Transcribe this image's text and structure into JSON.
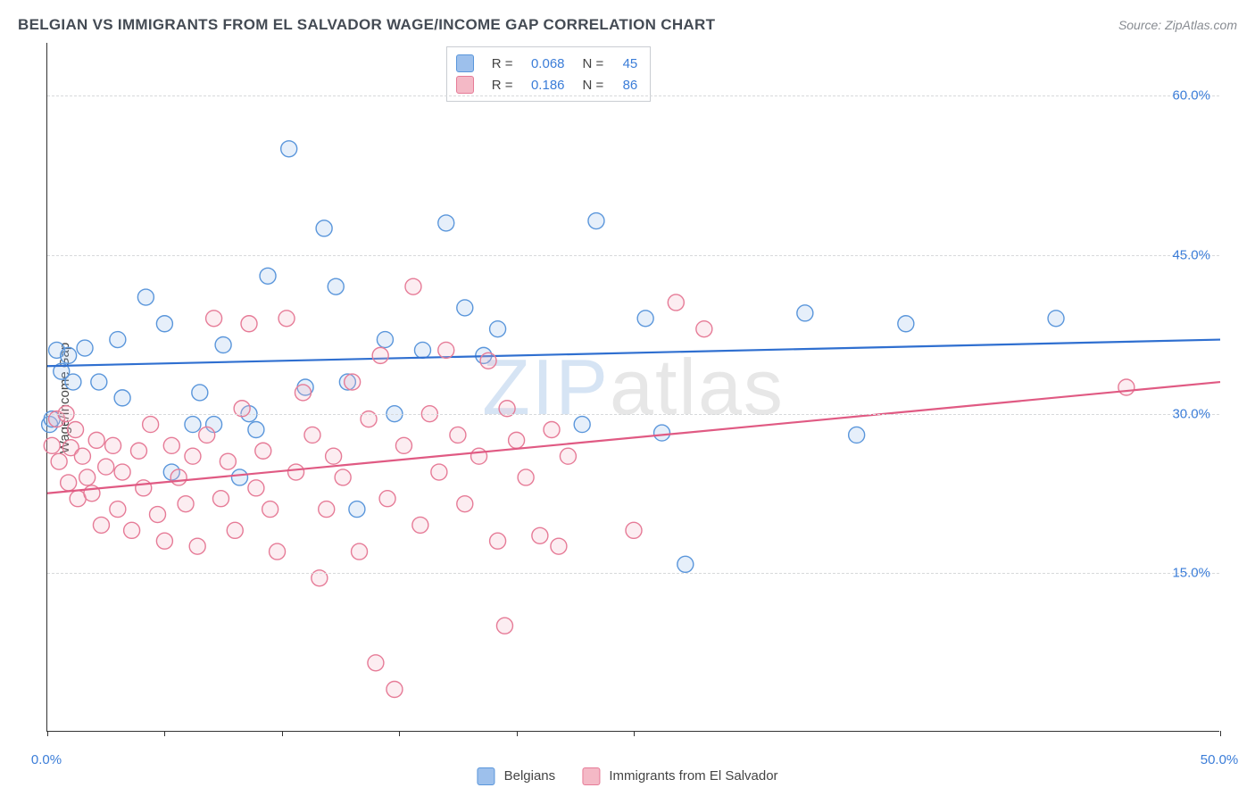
{
  "header": {
    "title": "BELGIAN VS IMMIGRANTS FROM EL SALVADOR WAGE/INCOME GAP CORRELATION CHART",
    "source": "Source: ZipAtlas.com"
  },
  "watermark": {
    "part1": "ZIP",
    "part2": "atlas"
  },
  "chart": {
    "type": "scatter",
    "ylabel": "Wage/Income Gap",
    "background_color": "#ffffff",
    "grid_color": "#d7d9db",
    "axis_color": "#333333",
    "label_color": "#3b7dd8",
    "xlim": [
      0,
      50
    ],
    "ylim": [
      0,
      65
    ],
    "xtick_positions": [
      0,
      5,
      10,
      15,
      20,
      25,
      50
    ],
    "xtick_labels": {
      "0": "0.0%",
      "50": "50.0%"
    },
    "ytick_positions": [
      15,
      30,
      45,
      60
    ],
    "ytick_labels": {
      "15": "15.0%",
      "30": "30.0%",
      "45": "45.0%",
      "60": "60.0%"
    },
    "marker_radius": 9,
    "marker_fill_opacity": 0.25,
    "marker_stroke_width": 1.4,
    "line_width": 2.2,
    "series": [
      {
        "id": "belgians",
        "label": "Belgians",
        "color_fill": "#9dc0ec",
        "color_stroke": "#5a96db",
        "R": "0.068",
        "N": "45",
        "trend": {
          "x1": 0,
          "y1": 34.5,
          "x2": 50,
          "y2": 37.0,
          "color": "#2f6fd0"
        },
        "points": [
          [
            0.1,
            29.0
          ],
          [
            0.2,
            29.5
          ],
          [
            0.4,
            36.0
          ],
          [
            0.6,
            34.0
          ],
          [
            0.9,
            35.5
          ],
          [
            1.1,
            33.0
          ],
          [
            1.6,
            36.2
          ],
          [
            2.2,
            33.0
          ],
          [
            3.0,
            37.0
          ],
          [
            3.2,
            31.5
          ],
          [
            4.2,
            41.0
          ],
          [
            5.0,
            38.5
          ],
          [
            5.3,
            24.5
          ],
          [
            6.2,
            29.0
          ],
          [
            6.5,
            32.0
          ],
          [
            7.1,
            29.0
          ],
          [
            7.5,
            36.5
          ],
          [
            8.2,
            24.0
          ],
          [
            8.6,
            30.0
          ],
          [
            8.9,
            28.5
          ],
          [
            9.4,
            43.0
          ],
          [
            10.3,
            55.0
          ],
          [
            11.0,
            32.5
          ],
          [
            11.8,
            47.5
          ],
          [
            12.3,
            42.0
          ],
          [
            12.8,
            33.0
          ],
          [
            13.2,
            21.0
          ],
          [
            14.4,
            37.0
          ],
          [
            14.8,
            30.0
          ],
          [
            16.0,
            36.0
          ],
          [
            17.0,
            48.0
          ],
          [
            17.8,
            40.0
          ],
          [
            18.6,
            35.5
          ],
          [
            19.2,
            38.0
          ],
          [
            22.8,
            29.0
          ],
          [
            23.4,
            48.2
          ],
          [
            25.5,
            39.0
          ],
          [
            26.2,
            28.2
          ],
          [
            27.2,
            15.8
          ],
          [
            32.3,
            39.5
          ],
          [
            34.5,
            28.0
          ],
          [
            36.6,
            38.5
          ],
          [
            43.0,
            39.0
          ]
        ]
      },
      {
        "id": "el_salvador",
        "label": "Immigrants from El Salvador",
        "color_fill": "#f4b9c6",
        "color_stroke": "#e67b97",
        "R": "0.186",
        "N": "86",
        "trend": {
          "x1": 0,
          "y1": 22.5,
          "x2": 50,
          "y2": 33.0,
          "color": "#e05a83"
        },
        "points": [
          [
            0.2,
            27.0
          ],
          [
            0.4,
            29.5
          ],
          [
            0.5,
            25.5
          ],
          [
            0.8,
            30.0
          ],
          [
            0.9,
            23.5
          ],
          [
            1.0,
            26.8
          ],
          [
            1.2,
            28.5
          ],
          [
            1.3,
            22.0
          ],
          [
            1.5,
            26.0
          ],
          [
            1.7,
            24.0
          ],
          [
            1.9,
            22.5
          ],
          [
            2.1,
            27.5
          ],
          [
            2.3,
            19.5
          ],
          [
            2.5,
            25.0
          ],
          [
            2.8,
            27.0
          ],
          [
            3.0,
            21.0
          ],
          [
            3.2,
            24.5
          ],
          [
            3.6,
            19.0
          ],
          [
            3.9,
            26.5
          ],
          [
            4.1,
            23.0
          ],
          [
            4.4,
            29.0
          ],
          [
            4.7,
            20.5
          ],
          [
            5.0,
            18.0
          ],
          [
            5.3,
            27.0
          ],
          [
            5.6,
            24.0
          ],
          [
            5.9,
            21.5
          ],
          [
            6.2,
            26.0
          ],
          [
            6.4,
            17.5
          ],
          [
            6.8,
            28.0
          ],
          [
            7.1,
            39.0
          ],
          [
            7.4,
            22.0
          ],
          [
            7.7,
            25.5
          ],
          [
            8.0,
            19.0
          ],
          [
            8.3,
            30.5
          ],
          [
            8.6,
            38.5
          ],
          [
            8.9,
            23.0
          ],
          [
            9.2,
            26.5
          ],
          [
            9.5,
            21.0
          ],
          [
            9.8,
            17.0
          ],
          [
            10.2,
            39.0
          ],
          [
            10.6,
            24.5
          ],
          [
            10.9,
            32.0
          ],
          [
            11.3,
            28.0
          ],
          [
            11.6,
            14.5
          ],
          [
            11.9,
            21.0
          ],
          [
            12.2,
            26.0
          ],
          [
            12.6,
            24.0
          ],
          [
            13.0,
            33.0
          ],
          [
            13.3,
            17.0
          ],
          [
            13.7,
            29.5
          ],
          [
            14.0,
            6.5
          ],
          [
            14.2,
            35.5
          ],
          [
            14.5,
            22.0
          ],
          [
            14.8,
            4.0
          ],
          [
            15.2,
            27.0
          ],
          [
            15.6,
            42.0
          ],
          [
            15.9,
            19.5
          ],
          [
            16.3,
            30.0
          ],
          [
            16.7,
            24.5
          ],
          [
            17.0,
            36.0
          ],
          [
            17.5,
            28.0
          ],
          [
            17.8,
            21.5
          ],
          [
            18.4,
            26.0
          ],
          [
            18.8,
            35.0
          ],
          [
            19.2,
            18.0
          ],
          [
            19.5,
            10.0
          ],
          [
            19.6,
            30.5
          ],
          [
            20.0,
            27.5
          ],
          [
            20.4,
            24.0
          ],
          [
            21.0,
            18.5
          ],
          [
            21.5,
            28.5
          ],
          [
            21.8,
            17.5
          ],
          [
            22.2,
            26.0
          ],
          [
            25.0,
            19.0
          ],
          [
            26.8,
            40.5
          ],
          [
            28.0,
            38.0
          ],
          [
            46.0,
            32.5
          ]
        ]
      }
    ]
  },
  "bottom_legend": {
    "item1_label": "Belgians",
    "item2_label": "Immigrants from El Salvador"
  },
  "top_legend_labels": {
    "R": "R =",
    "N": "N ="
  }
}
